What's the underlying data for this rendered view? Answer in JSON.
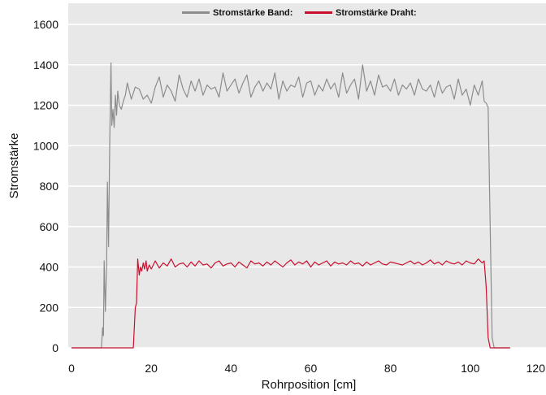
{
  "chart_data": {
    "type": "line",
    "xlabel": "Rohrposition [cm]",
    "ylabel": "Stromstärke",
    "xlim": [
      0,
      120
    ],
    "ylim": [
      0,
      1600
    ],
    "xticks": [
      0,
      20,
      40,
      60,
      80,
      100,
      120
    ],
    "yticks": [
      0,
      200,
      400,
      600,
      800,
      1000,
      1200,
      1400,
      1600
    ],
    "grid": "horizontal",
    "legend_position": "top-center",
    "background": "#e8e8e8",
    "series": [
      {
        "name": "Stromstärke Band:",
        "color": "#8c8c8c",
        "x": [
          0,
          7.5,
          7.8,
          8.0,
          8.2,
          8.5,
          8.8,
          9.0,
          9.3,
          9.6,
          9.9,
          10.1,
          10.4,
          10.7,
          11.0,
          11.3,
          11.6,
          12.0,
          12.5,
          13.0,
          13.5,
          14,
          15,
          16,
          17,
          18,
          19,
          20,
          21,
          22,
          23,
          24,
          25,
          26,
          27,
          28,
          29,
          30,
          31,
          32,
          33,
          34,
          35,
          36,
          37,
          38,
          39,
          40,
          41,
          42,
          43,
          44,
          45,
          46,
          47,
          48,
          49,
          50,
          51,
          52,
          53,
          54,
          55,
          56,
          57,
          58,
          59,
          60,
          61,
          62,
          63,
          64,
          65,
          66,
          67,
          68,
          69,
          70,
          71,
          72,
          73,
          74,
          75,
          76,
          77,
          78,
          79,
          80,
          81,
          82,
          83,
          84,
          85,
          86,
          87,
          88,
          89,
          90,
          91,
          92,
          93,
          94,
          95,
          96,
          97,
          98,
          99,
          100,
          101,
          102,
          103,
          103.5,
          104,
          104.5,
          105,
          105.5,
          106,
          110
        ],
        "y": [
          0,
          0,
          100,
          60,
          430,
          180,
          410,
          820,
          500,
          1030,
          1410,
          1100,
          1180,
          1090,
          1250,
          1150,
          1270,
          1200,
          1180,
          1220,
          1250,
          1310,
          1230,
          1290,
          1280,
          1230,
          1250,
          1210,
          1290,
          1340,
          1240,
          1300,
          1270,
          1220,
          1350,
          1280,
          1240,
          1320,
          1270,
          1330,
          1250,
          1300,
          1280,
          1290,
          1240,
          1360,
          1270,
          1300,
          1330,
          1260,
          1310,
          1350,
          1240,
          1290,
          1320,
          1270,
          1310,
          1280,
          1360,
          1230,
          1320,
          1270,
          1300,
          1290,
          1340,
          1240,
          1310,
          1320,
          1250,
          1300,
          1270,
          1330,
          1280,
          1310,
          1240,
          1360,
          1260,
          1300,
          1330,
          1230,
          1400,
          1270,
          1320,
          1250,
          1350,
          1290,
          1300,
          1270,
          1330,
          1250,
          1300,
          1280,
          1310,
          1250,
          1330,
          1280,
          1270,
          1300,
          1240,
          1320,
          1260,
          1290,
          1300,
          1230,
          1330,
          1250,
          1280,
          1200,
          1300,
          1250,
          1320,
          1220,
          1210,
          1190,
          600,
          50,
          0,
          0
        ]
      },
      {
        "name": "Stromstärke Draht:",
        "color": "#c8102e",
        "x": [
          0,
          15.5,
          16,
          16.3,
          16.6,
          17.0,
          17.3,
          17.6,
          18.0,
          18.3,
          18.7,
          19.0,
          19.5,
          20,
          21,
          22,
          23,
          24,
          25,
          26,
          27,
          28,
          29,
          30,
          31,
          32,
          33,
          34,
          35,
          36,
          37,
          38,
          39,
          40,
          41,
          42,
          43,
          44,
          45,
          46,
          47,
          48,
          49,
          50,
          51,
          52,
          53,
          54,
          55,
          56,
          57,
          58,
          59,
          60,
          61,
          62,
          63,
          64,
          65,
          66,
          67,
          68,
          69,
          70,
          71,
          72,
          73,
          74,
          75,
          76,
          77,
          78,
          79,
          80,
          81,
          82,
          83,
          84,
          85,
          86,
          87,
          88,
          89,
          90,
          91,
          92,
          93,
          94,
          95,
          96,
          97,
          98,
          99,
          100,
          101,
          102,
          103,
          103.5,
          104,
          104.5,
          105,
          105.5,
          110
        ],
        "y": [
          0,
          0,
          200,
          220,
          440,
          360,
          400,
          380,
          420,
          390,
          430,
          380,
          410,
          390,
          430,
          395,
          420,
          405,
          440,
          400,
          415,
          420,
          400,
          425,
          405,
          430,
          410,
          415,
          395,
          420,
          430,
          405,
          415,
          420,
          400,
          425,
          410,
          395,
          430,
          415,
          420,
          405,
          425,
          410,
          430,
          415,
          400,
          420,
          435,
          410,
          425,
          415,
          430,
          400,
          425,
          410,
          420,
          430,
          405,
          425,
          415,
          420,
          410,
          430,
          415,
          420,
          405,
          425,
          410,
          420,
          430,
          415,
          410,
          425,
          420,
          415,
          410,
          420,
          430,
          415,
          425,
          410,
          420,
          435,
          415,
          425,
          410,
          430,
          420,
          415,
          425,
          410,
          430,
          420,
          415,
          440,
          420,
          430,
          300,
          50,
          0,
          0,
          0
        ]
      }
    ]
  }
}
